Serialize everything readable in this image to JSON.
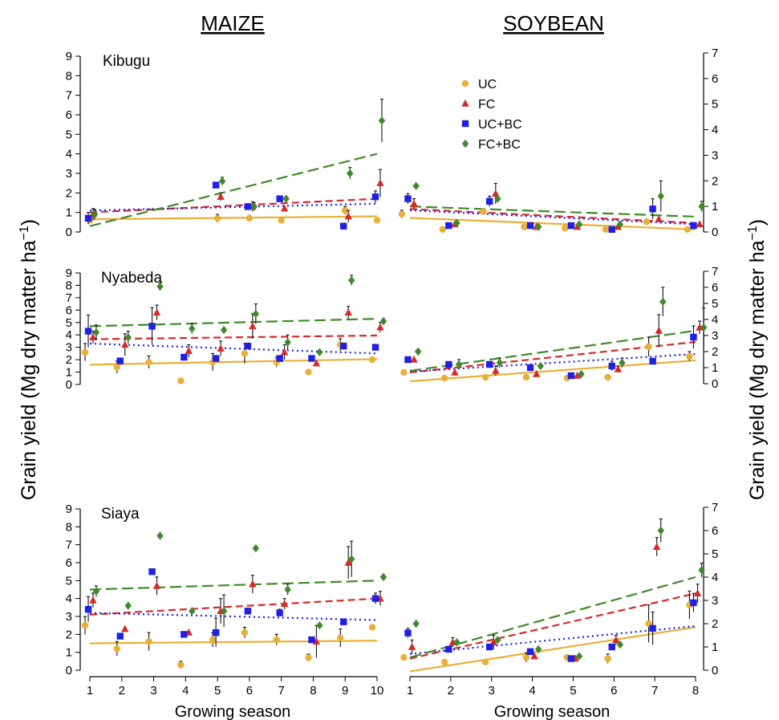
{
  "figure": {
    "maize_title": "MAIZE",
    "soybean_title": "SOYBEAN",
    "xlabel": "Growing season",
    "ylabel_main": "Grain yield (Mg dry matter ha",
    "ylabel_sup": "−1",
    "ylabel_close": ")"
  },
  "legend": {
    "placement": "top-left of Kibugu soybean panel",
    "entries": [
      {
        "label": "UC",
        "color": "#E8B038",
        "marker": "circle"
      },
      {
        "label": "FC",
        "color": "#D62A2A",
        "marker": "triangle"
      },
      {
        "label": "UC+BC",
        "color": "#1F1FE6",
        "marker": "square"
      },
      {
        "label": "FC+BC",
        "color": "#3E8A2A",
        "marker": "diamond"
      }
    ]
  },
  "chart_data": [
    {
      "type": "scatter",
      "crop": "MAIZE",
      "site": "Kibugu",
      "xlim": [
        1,
        10
      ],
      "ylim": [
        0,
        9
      ],
      "xticks": [
        "1",
        "2",
        "3",
        "4",
        "5",
        "6",
        "7",
        "8",
        "9",
        "10"
      ],
      "yticks": [
        "0",
        "1",
        "2",
        "3",
        "4",
        "5",
        "6",
        "7",
        "8",
        "9"
      ],
      "yaxis_side": "left",
      "series": [
        {
          "name": "UC",
          "x": [
            1,
            5,
            6,
            7,
            9,
            10
          ],
          "y": [
            0.6,
            0.7,
            0.7,
            0.6,
            1.1,
            0.6
          ],
          "err": [
            0.15,
            0.2,
            0.15,
            0,
            0.2,
            0
          ],
          "trend": [
            0.65,
            0.8
          ]
        },
        {
          "name": "FC",
          "x": [
            1.1,
            5.1,
            6.1,
            7.1,
            9.1,
            10.1
          ],
          "y": [
            0.9,
            1.8,
            1.3,
            1.2,
            0.8,
            2.5
          ],
          "err": [
            0.3,
            0.2,
            0.25,
            0,
            0.3,
            0.7
          ],
          "trend": [
            1.0,
            1.7
          ]
        },
        {
          "name": "UC+BC",
          "x": [
            0.95,
            4.95,
            5.95,
            6.95,
            8.95,
            9.95
          ],
          "y": [
            0.7,
            2.4,
            1.3,
            1.7,
            0.3,
            1.8
          ],
          "err": [
            0.3,
            0,
            0,
            0,
            0,
            0.3
          ],
          "trend": [
            1.1,
            1.45
          ]
        },
        {
          "name": "FC+BC",
          "x": [
            1.15,
            5.15,
            6.15,
            7.15,
            9.15,
            10.15
          ],
          "y": [
            0.9,
            2.6,
            1.3,
            1.7,
            3.0,
            5.7
          ],
          "err": [
            0.25,
            0.2,
            0.2,
            0,
            0.3,
            1.1
          ],
          "trend": [
            0.3,
            4.0
          ]
        }
      ]
    },
    {
      "type": "scatter",
      "crop": "SOYBEAN",
      "site": "Kibugu",
      "xlim": [
        1,
        8
      ],
      "ylim": [
        0,
        7
      ],
      "xticks": [
        "1",
        "2",
        "3",
        "4",
        "5",
        "6",
        "7",
        "8"
      ],
      "yticks": [
        "0",
        "1",
        "2",
        "3",
        "4",
        "5",
        "6",
        "7"
      ],
      "yaxis_side": "right",
      "series": [
        {
          "name": "UC",
          "x": [
            0.8,
            1.8,
            2.8,
            3.8,
            4.8,
            5.8,
            6.8,
            7.8
          ],
          "y": [
            0.7,
            0.1,
            0.8,
            0.2,
            0.15,
            0.1,
            0.4,
            0.1
          ],
          "err": [
            0.15,
            0,
            0.1,
            0,
            0,
            0,
            0,
            0
          ],
          "trend": [
            0.55,
            0.1
          ]
        },
        {
          "name": "FC",
          "x": [
            1.1,
            2.1,
            3.1,
            4.1,
            5.1,
            6.1,
            7.1,
            8.1
          ],
          "y": [
            1.1,
            0.3,
            1.5,
            0.2,
            0.2,
            0.2,
            0.5,
            0.3
          ],
          "err": [
            0.2,
            0,
            0.4,
            0,
            0,
            0,
            0,
            0
          ],
          "trend": [
            0.9,
            0.35
          ]
        },
        {
          "name": "UC+BC",
          "x": [
            0.95,
            1.95,
            2.95,
            3.95,
            4.95,
            5.95,
            6.95,
            7.95
          ],
          "y": [
            1.3,
            0.25,
            1.2,
            0.25,
            0.25,
            0.1,
            0.9,
            0.25
          ],
          "err": [
            0.2,
            0,
            0.2,
            0,
            0,
            0,
            0.4,
            0
          ],
          "trend": [
            0.85,
            0.3
          ]
        },
        {
          "name": "FC+BC",
          "x": [
            1.15,
            2.15,
            3.15,
            4.15,
            5.15,
            6.15,
            7.15,
            8.15
          ],
          "y": [
            1.8,
            0.35,
            1.3,
            0.2,
            0.3,
            0.3,
            1.4,
            1.0
          ],
          "err": [
            0,
            0,
            0,
            0,
            0,
            0,
            0.6,
            0.2
          ],
          "trend": [
            1.0,
            0.6
          ]
        }
      ]
    },
    {
      "type": "scatter",
      "crop": "MAIZE",
      "site": "Nyabeda",
      "xlim": [
        1,
        10
      ],
      "ylim": [
        0,
        9
      ],
      "xticks": [
        "1",
        "2",
        "3",
        "4",
        "5",
        "6",
        "7",
        "8",
        "9",
        "10"
      ],
      "yticks": [
        "0",
        "1",
        "2",
        "3",
        "4",
        "5",
        "6",
        "7",
        "8",
        "9"
      ],
      "yaxis_side": "left",
      "series": [
        {
          "name": "UC",
          "x": [
            0.85,
            1.85,
            2.85,
            3.85,
            4.85,
            5.85,
            6.85,
            7.85,
            8.85,
            9.85
          ],
          "y": [
            2.6,
            1.4,
            1.8,
            0.3,
            1.8,
            2.5,
            1.8,
            1.0,
            3.2,
            2.0
          ],
          "err": [
            0.7,
            0.5,
            0.5,
            0,
            0.7,
            0.8,
            0.4,
            0,
            0.5,
            0.2
          ],
          "trend": [
            1.6,
            2.05
          ]
        },
        {
          "name": "FC",
          "x": [
            1.1,
            2.1,
            3.1,
            4.1,
            5.1,
            6.1,
            7.1,
            8.1,
            9.1,
            10.1
          ],
          "y": [
            3.8,
            3.2,
            5.8,
            2.7,
            2.9,
            4.7,
            2.6,
            1.7,
            5.8,
            4.6
          ],
          "err": [
            0.5,
            0.9,
            0.6,
            0.5,
            0.6,
            1.0,
            0.6,
            0,
            0.5,
            0.4
          ],
          "trend": [
            3.65,
            3.95
          ]
        },
        {
          "name": "UC+BC",
          "x": [
            0.95,
            1.95,
            2.95,
            3.95,
            4.95,
            5.95,
            6.95,
            7.95,
            8.95,
            9.95
          ],
          "y": [
            4.3,
            1.9,
            4.7,
            2.2,
            2.1,
            3.1,
            2.1,
            2.1,
            3.1,
            3.0
          ],
          "err": [
            1.3,
            0,
            1.5,
            0,
            0,
            0,
            0,
            0,
            0,
            0.2
          ],
          "trend": [
            3.3,
            2.5
          ]
        },
        {
          "name": "FC+BC",
          "x": [
            1.2,
            2.2,
            3.2,
            4.2,
            5.2,
            6.2,
            7.2,
            8.2,
            9.2,
            10.2
          ],
          "y": [
            4.2,
            3.8,
            7.9,
            4.5,
            4.4,
            5.7,
            3.4,
            2.6,
            8.4,
            5.1
          ],
          "err": [
            0.6,
            0.5,
            0.3,
            0.4,
            0,
            0.8,
            0.6,
            0,
            0.4,
            0.2
          ],
          "trend": [
            4.7,
            5.3
          ]
        }
      ]
    },
    {
      "type": "scatter",
      "crop": "SOYBEAN",
      "site": "Nyabeda",
      "xlim": [
        1,
        8
      ],
      "ylim": [
        0,
        7
      ],
      "xticks": [
        "1",
        "2",
        "3",
        "4",
        "5",
        "6",
        "7",
        "8"
      ],
      "yticks": [
        "0",
        "1",
        "2",
        "3",
        "4",
        "5",
        "6",
        "7"
      ],
      "yaxis_side": "right",
      "series": [
        {
          "name": "UC",
          "x": [
            0.85,
            1.85,
            2.85,
            3.85,
            4.85,
            5.85,
            6.85,
            7.85
          ],
          "y": [
            0.7,
            0.35,
            0.4,
            0.4,
            0.35,
            0.4,
            2.3,
            1.7
          ],
          "err": [
            0.1,
            0,
            0,
            0,
            0,
            0,
            0.6,
            0.3
          ],
          "trend": [
            0.15,
            1.45
          ]
        },
        {
          "name": "FC",
          "x": [
            1.1,
            2.1,
            3.1,
            4.1,
            5.1,
            6.1,
            7.1,
            8.1
          ],
          "y": [
            1.5,
            0.7,
            0.8,
            0.6,
            0.5,
            0.9,
            3.3,
            3.5
          ],
          "err": [
            0,
            0,
            0.3,
            0,
            0,
            0.2,
            1.0,
            0.4
          ],
          "trend": [
            0.7,
            2.6
          ]
        },
        {
          "name": "UC+BC",
          "x": [
            0.95,
            1.95,
            2.95,
            3.95,
            4.95,
            5.95,
            6.95,
            7.95
          ],
          "y": [
            1.5,
            1.2,
            1.2,
            1.0,
            0.5,
            1.1,
            1.4,
            2.9
          ],
          "err": [
            0,
            0,
            0,
            0,
            0,
            0.3,
            0,
            0.7
          ],
          "trend": [
            0.75,
            1.85
          ]
        },
        {
          "name": "FC+BC",
          "x": [
            1.2,
            2.2,
            3.2,
            4.2,
            5.2,
            6.2,
            7.2,
            8.2
          ],
          "y": [
            2.0,
            1.2,
            1.3,
            1.1,
            0.6,
            1.3,
            5.1,
            3.5
          ],
          "err": [
            0,
            0.3,
            0.3,
            0,
            0,
            0.3,
            0.9,
            1.2
          ],
          "trend": [
            0.8,
            3.3
          ]
        }
      ]
    },
    {
      "type": "scatter",
      "crop": "MAIZE",
      "site": "Siaya",
      "xlim": [
        1,
        10
      ],
      "ylim": [
        0,
        9
      ],
      "xticks": [
        "1",
        "2",
        "3",
        "4",
        "5",
        "6",
        "7",
        "8",
        "9",
        "10"
      ],
      "yticks": [
        "0",
        "1",
        "2",
        "3",
        "4",
        "5",
        "6",
        "7",
        "8",
        "9"
      ],
      "yaxis_side": "left",
      "series": [
        {
          "name": "UC",
          "x": [
            0.85,
            1.85,
            2.85,
            3.85,
            4.85,
            5.85,
            6.85,
            7.85,
            8.85,
            9.85
          ],
          "y": [
            2.5,
            1.2,
            1.6,
            0.3,
            1.7,
            2.1,
            1.7,
            0.7,
            1.8,
            2.4
          ],
          "err": [
            0.5,
            0.4,
            0.5,
            0.2,
            0.4,
            0.3,
            0.3,
            0.2,
            0.5,
            0
          ],
          "trend": [
            1.5,
            1.65
          ]
        },
        {
          "name": "FC",
          "x": [
            1.1,
            2.1,
            3.1,
            4.1,
            5.1,
            6.1,
            7.1,
            8.1,
            9.1,
            10.1
          ],
          "y": [
            3.9,
            2.3,
            4.7,
            2.1,
            3.3,
            4.8,
            3.7,
            1.6,
            6.0,
            4.0
          ],
          "err": [
            0.4,
            0,
            0.5,
            0,
            0.7,
            0.5,
            0.3,
            0.9,
            0.9,
            0.4
          ],
          "trend": [
            3.1,
            4.0
          ]
        },
        {
          "name": "UC+BC",
          "x": [
            0.95,
            1.95,
            2.95,
            3.95,
            4.95,
            5.95,
            6.95,
            7.95,
            8.95,
            9.95
          ],
          "y": [
            3.4,
            1.9,
            5.5,
            2.0,
            2.1,
            3.3,
            3.2,
            1.7,
            2.7,
            4.0
          ],
          "err": [
            0.7,
            0,
            0,
            0,
            0.8,
            0,
            0.2,
            0,
            0,
            0.3
          ],
          "trend": [
            3.2,
            2.8
          ]
        },
        {
          "name": "FC+BC",
          "x": [
            1.2,
            2.2,
            3.2,
            4.2,
            5.2,
            6.2,
            7.2,
            8.2,
            9.2,
            10.2
          ],
          "y": [
            4.4,
            3.6,
            7.5,
            3.3,
            3.3,
            6.8,
            4.5,
            2.5,
            6.2,
            5.2
          ],
          "err": [
            0.3,
            0,
            0,
            0,
            0.9,
            0,
            0.3,
            0,
            1.0,
            0
          ],
          "trend": [
            4.5,
            5.0
          ]
        }
      ]
    },
    {
      "type": "scatter",
      "crop": "SOYBEAN",
      "site": "Siaya",
      "xlim": [
        1,
        8
      ],
      "ylim": [
        0,
        7
      ],
      "xticks": [
        "1",
        "2",
        "3",
        "4",
        "5",
        "6",
        "7",
        "8"
      ],
      "yticks": [
        "0",
        "1",
        "2",
        "3",
        "4",
        "5",
        "6",
        "7"
      ],
      "yaxis_side": "right",
      "series": [
        {
          "name": "UC",
          "x": [
            0.85,
            1.85,
            2.85,
            3.85,
            4.85,
            5.85,
            6.85,
            7.85
          ],
          "y": [
            0.55,
            0.35,
            0.35,
            0.55,
            0.55,
            0.5,
            2.0,
            2.8
          ],
          "err": [
            0,
            0,
            0,
            0.2,
            0,
            0.2,
            0.8,
            0.6
          ],
          "trend": [
            -0.05,
            1.85
          ]
        },
        {
          "name": "FC",
          "x": [
            1.05,
            2.05,
            3.05,
            4.05,
            5.05,
            6.05,
            7.05,
            8.05
          ],
          "y": [
            1.0,
            1.2,
            1.2,
            0.6,
            0.5,
            1.3,
            5.3,
            3.3
          ],
          "err": [
            0.3,
            0.2,
            0.3,
            0,
            0,
            0.2,
            0.4,
            0.4
          ],
          "trend": [
            0.5,
            3.3
          ]
        },
        {
          "name": "UC+BC",
          "x": [
            0.95,
            1.95,
            2.95,
            3.95,
            4.95,
            5.95,
            6.95,
            7.95
          ],
          "y": [
            1.6,
            0.9,
            1.0,
            0.8,
            0.5,
            1.0,
            1.8,
            2.9
          ],
          "err": [
            0.2,
            0,
            0,
            0,
            0,
            0,
            0.7,
            0.4
          ],
          "trend": [
            0.7,
            1.9
          ]
        },
        {
          "name": "FC+BC",
          "x": [
            1.15,
            2.15,
            3.15,
            4.15,
            5.15,
            6.15,
            7.15,
            8.15
          ],
          "y": [
            2.0,
            1.2,
            1.3,
            0.9,
            0.6,
            1.1,
            6.0,
            4.3
          ],
          "err": [
            0,
            0,
            0,
            0,
            0,
            0,
            0.5,
            0.3
          ],
          "trend": [
            0.55,
            4.0
          ]
        }
      ]
    }
  ]
}
